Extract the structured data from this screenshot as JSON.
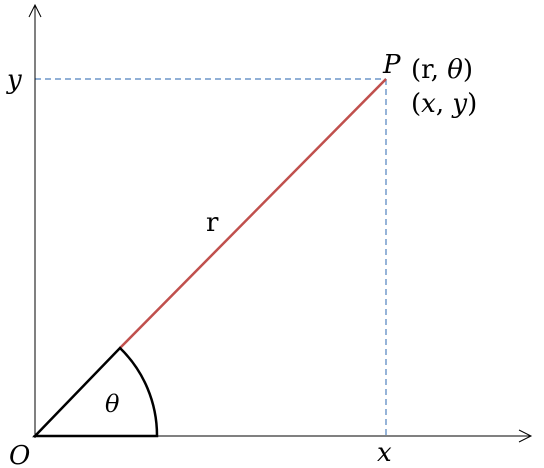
{
  "diagram": {
    "origin_label": "O",
    "x_axis_label": "x",
    "y_axis_label": "y",
    "point_label": "P",
    "polar_coords": {
      "open": "(",
      "r": "r",
      "sep": ", ",
      "theta": "θ",
      "close": ")"
    },
    "cartesian_coords": {
      "open": "(",
      "x": "x",
      "sep": ", ",
      "y": "y",
      "close": ")"
    },
    "radius_label": "r",
    "angle_label": "θ",
    "colors": {
      "radius_line": "#c0504d",
      "guide_lines": "#4f81bd",
      "axes": "#000000",
      "angle_sector": "#000000"
    }
  }
}
